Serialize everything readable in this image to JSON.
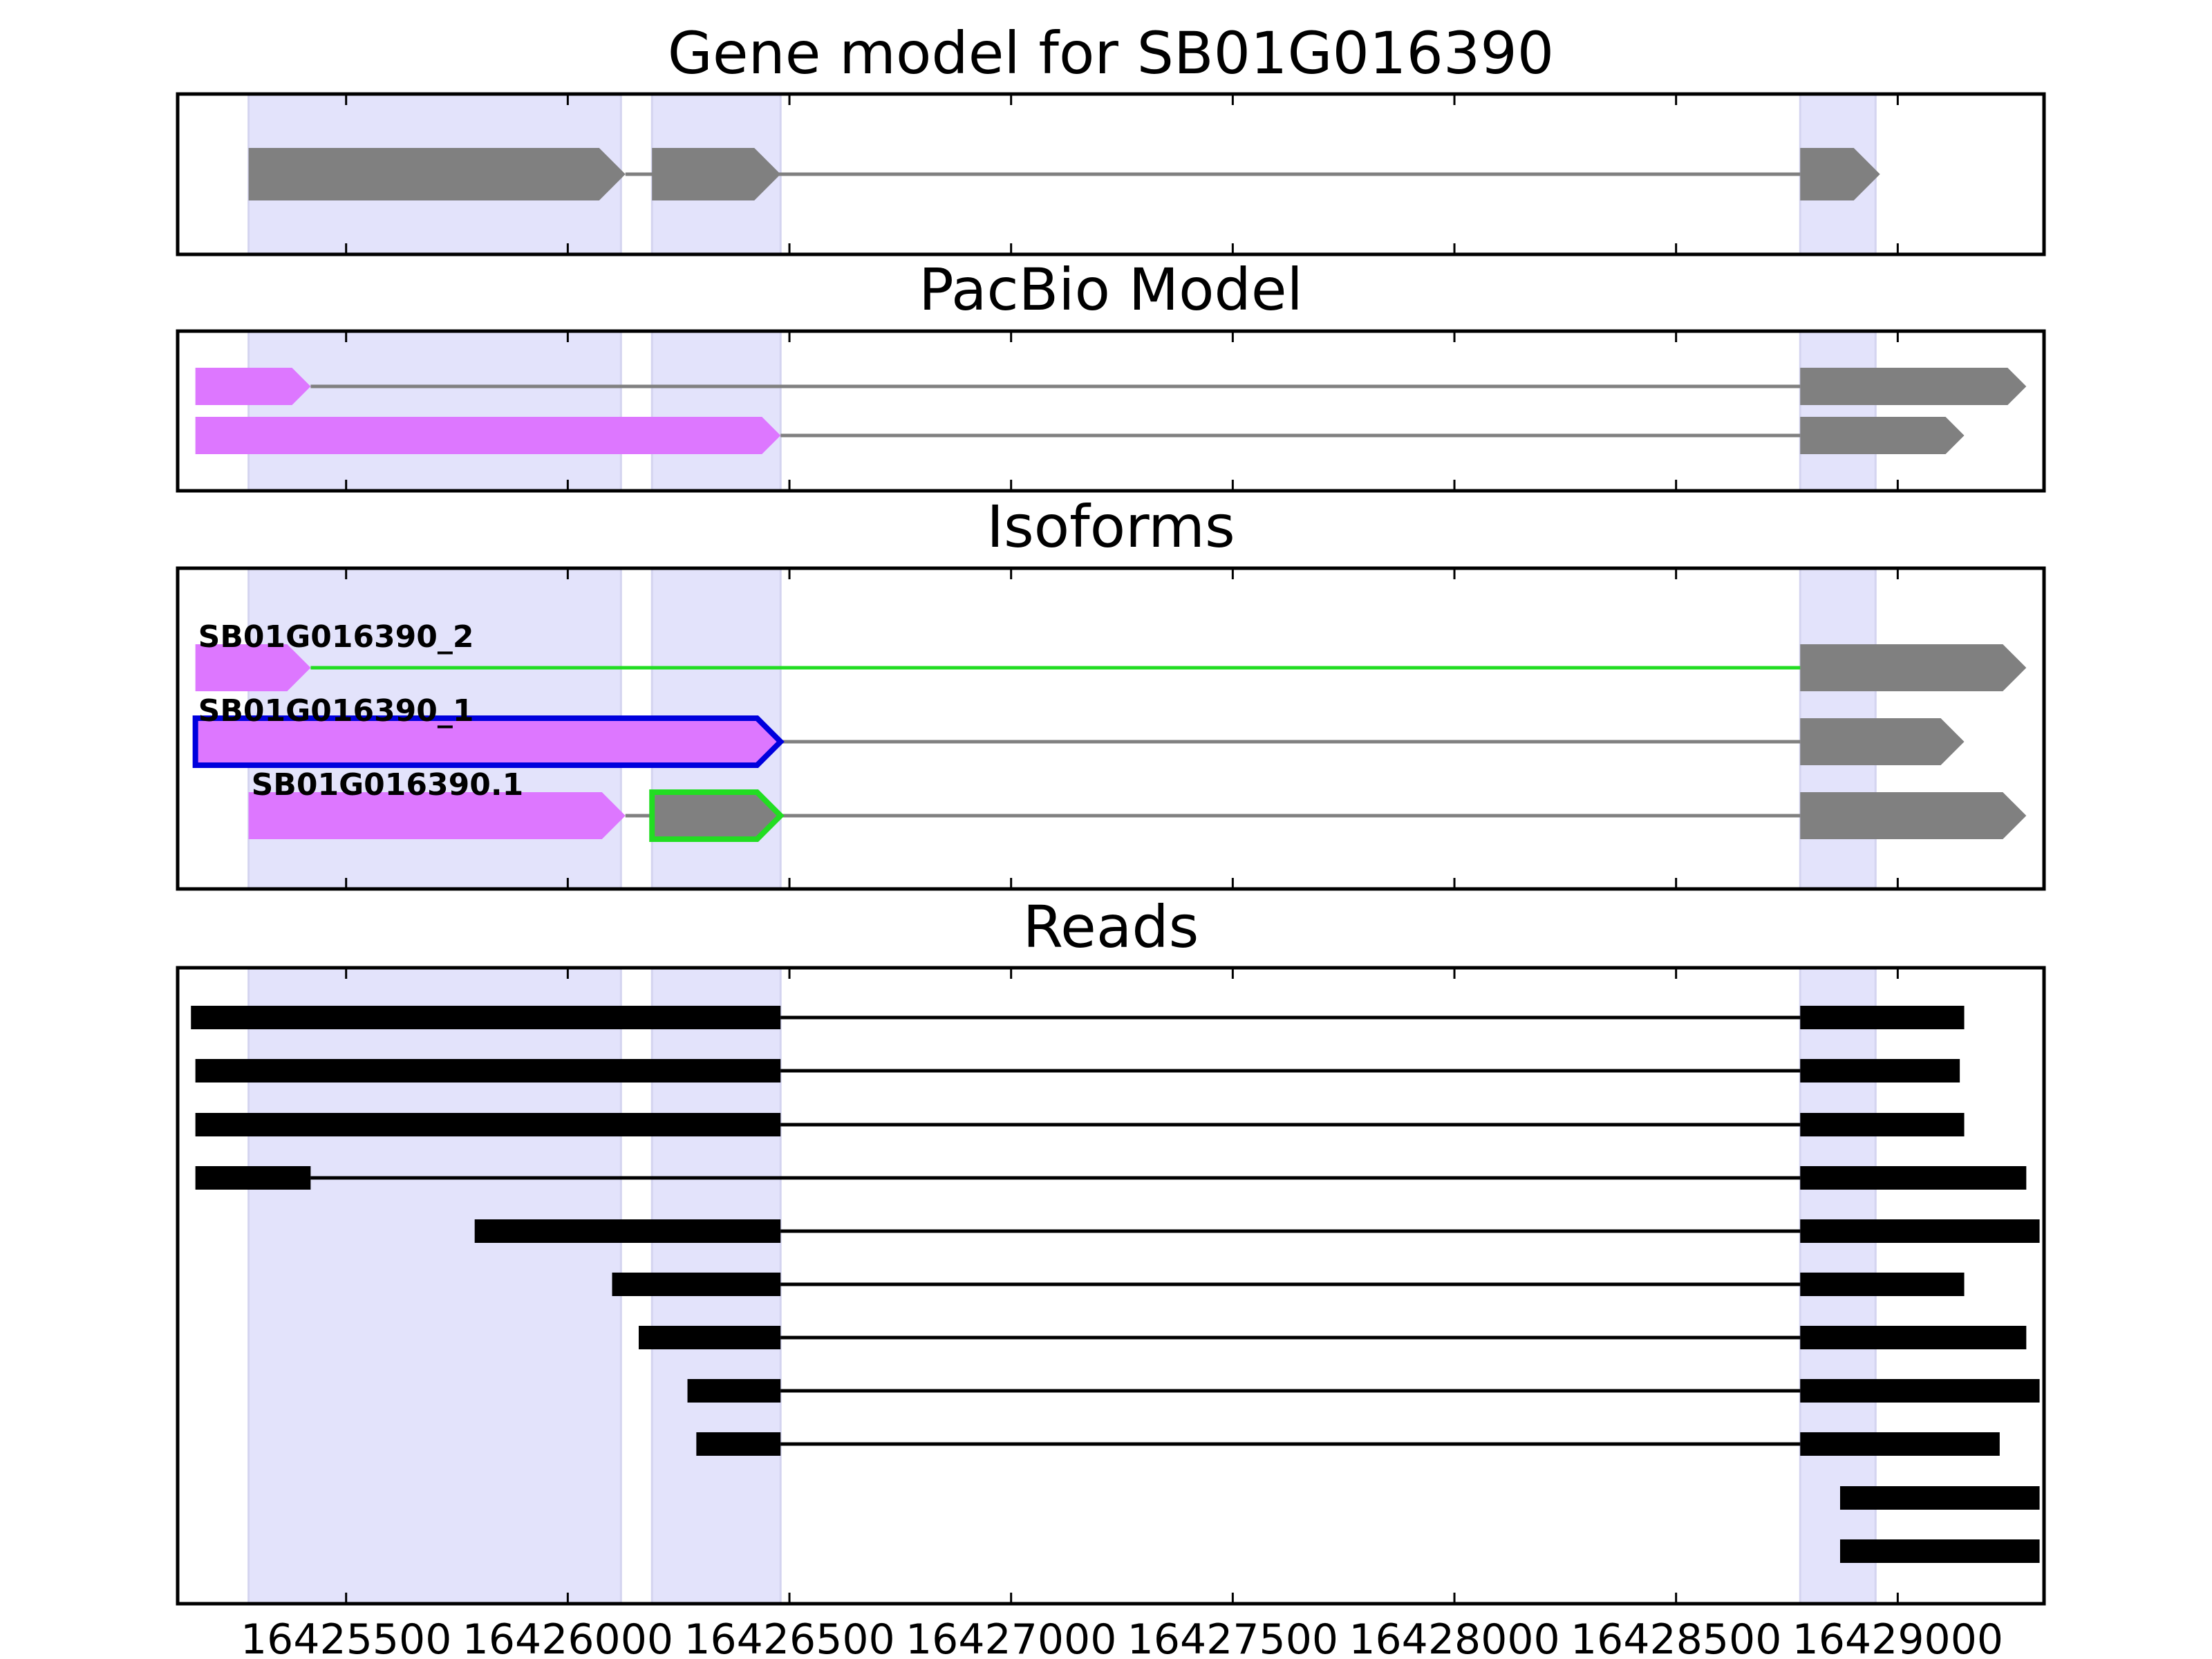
{
  "panels": {
    "gene_model": {
      "title": "Gene model for SB01G016390",
      "tracks": [
        {
          "line_color": "#808080",
          "exons": [
            {
              "start": 16425280,
              "end": 16426130,
              "fill": "#808080",
              "arrow": true
            },
            {
              "start": 16426190,
              "end": 16426480,
              "fill": "#808080",
              "arrow": true
            },
            {
              "start": 16428780,
              "end": 16428960,
              "fill": "#808080",
              "arrow": true
            }
          ]
        }
      ]
    },
    "pacbio_model": {
      "title": "PacBio Model",
      "tracks": [
        {
          "line_color": "#808080",
          "exons": [
            {
              "start": 16425160,
              "end": 16425420,
              "fill": "#dd77ff",
              "arrow": true
            },
            {
              "start": 16428780,
              "end": 16429290,
              "fill": "#808080",
              "arrow": true
            }
          ]
        },
        {
          "line_color": "#808080",
          "exons": [
            {
              "start": 16425160,
              "end": 16426480,
              "fill": "#dd77ff",
              "arrow": true
            },
            {
              "start": 16428780,
              "end": 16429150,
              "fill": "#808080",
              "arrow": true
            }
          ]
        }
      ]
    },
    "isoforms": {
      "title": "Isoforms",
      "tracks": [
        {
          "label": "SB01G016390_2",
          "line_color": "#22dd22",
          "exons": [
            {
              "start": 16425160,
              "end": 16425420,
              "fill": "#dd77ff",
              "arrow": true
            },
            {
              "start": 16428780,
              "end": 16429290,
              "fill": "#808080",
              "arrow": true
            }
          ]
        },
        {
          "label": "SB01G016390_1",
          "line_color": "#808080",
          "exons": [
            {
              "start": 16425160,
              "end": 16426480,
              "fill": "#dd77ff",
              "stroke": "#0000dd",
              "arrow": true
            },
            {
              "start": 16428780,
              "end": 16429150,
              "fill": "#808080",
              "arrow": true
            }
          ]
        },
        {
          "label": "SB01G016390.1",
          "line_color": "#808080",
          "exons": [
            {
              "start": 16425280,
              "end": 16426130,
              "fill": "#dd77ff",
              "arrow": true
            },
            {
              "start": 16426190,
              "end": 16426480,
              "fill": "#808080",
              "stroke": "#22dd22",
              "arrow": true
            },
            {
              "start": 16428780,
              "end": 16429290,
              "fill": "#808080",
              "arrow": true
            }
          ]
        }
      ]
    },
    "reads": {
      "title": "Reads",
      "tracks": [
        {
          "line_color": "#000000",
          "exons": [
            {
              "start": 16425150,
              "end": 16426480,
              "fill": "#000000"
            },
            {
              "start": 16428780,
              "end": 16429150,
              "fill": "#000000"
            }
          ]
        },
        {
          "line_color": "#000000",
          "exons": [
            {
              "start": 16425160,
              "end": 16426480,
              "fill": "#000000"
            },
            {
              "start": 16428780,
              "end": 16429140,
              "fill": "#000000"
            }
          ]
        },
        {
          "line_color": "#000000",
          "exons": [
            {
              "start": 16425160,
              "end": 16426480,
              "fill": "#000000"
            },
            {
              "start": 16428780,
              "end": 16429150,
              "fill": "#000000"
            }
          ]
        },
        {
          "line_color": "#000000",
          "exons": [
            {
              "start": 16425160,
              "end": 16425420,
              "fill": "#000000"
            },
            {
              "start": 16428780,
              "end": 16429290,
              "fill": "#000000"
            }
          ]
        },
        {
          "line_color": "#000000",
          "exons": [
            {
              "start": 16425790,
              "end": 16426480,
              "fill": "#000000"
            },
            {
              "start": 16428780,
              "end": 16429320,
              "fill": "#000000"
            }
          ]
        },
        {
          "line_color": "#000000",
          "exons": [
            {
              "start": 16426100,
              "end": 16426480,
              "fill": "#000000"
            },
            {
              "start": 16428780,
              "end": 16429150,
              "fill": "#000000"
            }
          ]
        },
        {
          "line_color": "#000000",
          "exons": [
            {
              "start": 16426160,
              "end": 16426480,
              "fill": "#000000"
            },
            {
              "start": 16428780,
              "end": 16429290,
              "fill": "#000000"
            }
          ]
        },
        {
          "line_color": "#000000",
          "exons": [
            {
              "start": 16426270,
              "end": 16426480,
              "fill": "#000000"
            },
            {
              "start": 16428780,
              "end": 16429320,
              "fill": "#000000"
            }
          ]
        },
        {
          "line_color": "#000000",
          "exons": [
            {
              "start": 16426290,
              "end": 16426480,
              "fill": "#000000"
            },
            {
              "start": 16428780,
              "end": 16429230,
              "fill": "#000000"
            }
          ]
        },
        {
          "line_color": null,
          "exons": [
            {
              "start": 16428870,
              "end": 16429320,
              "fill": "#000000"
            }
          ]
        },
        {
          "line_color": null,
          "exons": [
            {
              "start": 16428870,
              "end": 16429320,
              "fill": "#000000"
            }
          ]
        }
      ]
    }
  },
  "highlight_regions": [
    {
      "start": 16425280,
      "end": 16426120
    },
    {
      "start": 16426190,
      "end": 16426480
    },
    {
      "start": 16428780,
      "end": 16428950
    }
  ],
  "highlight_color": "#e3e3fb",
  "x_axis": {
    "min": 16425120,
    "max": 16429330,
    "tick_values": [
      16425500,
      16426000,
      16426500,
      16427000,
      16427500,
      16428000,
      16428500,
      16429000
    ],
    "tick_labels": [
      "16425500",
      "16426000",
      "16426500",
      "16427000",
      "16427500",
      "16428000",
      "16428500",
      "16429000"
    ]
  }
}
